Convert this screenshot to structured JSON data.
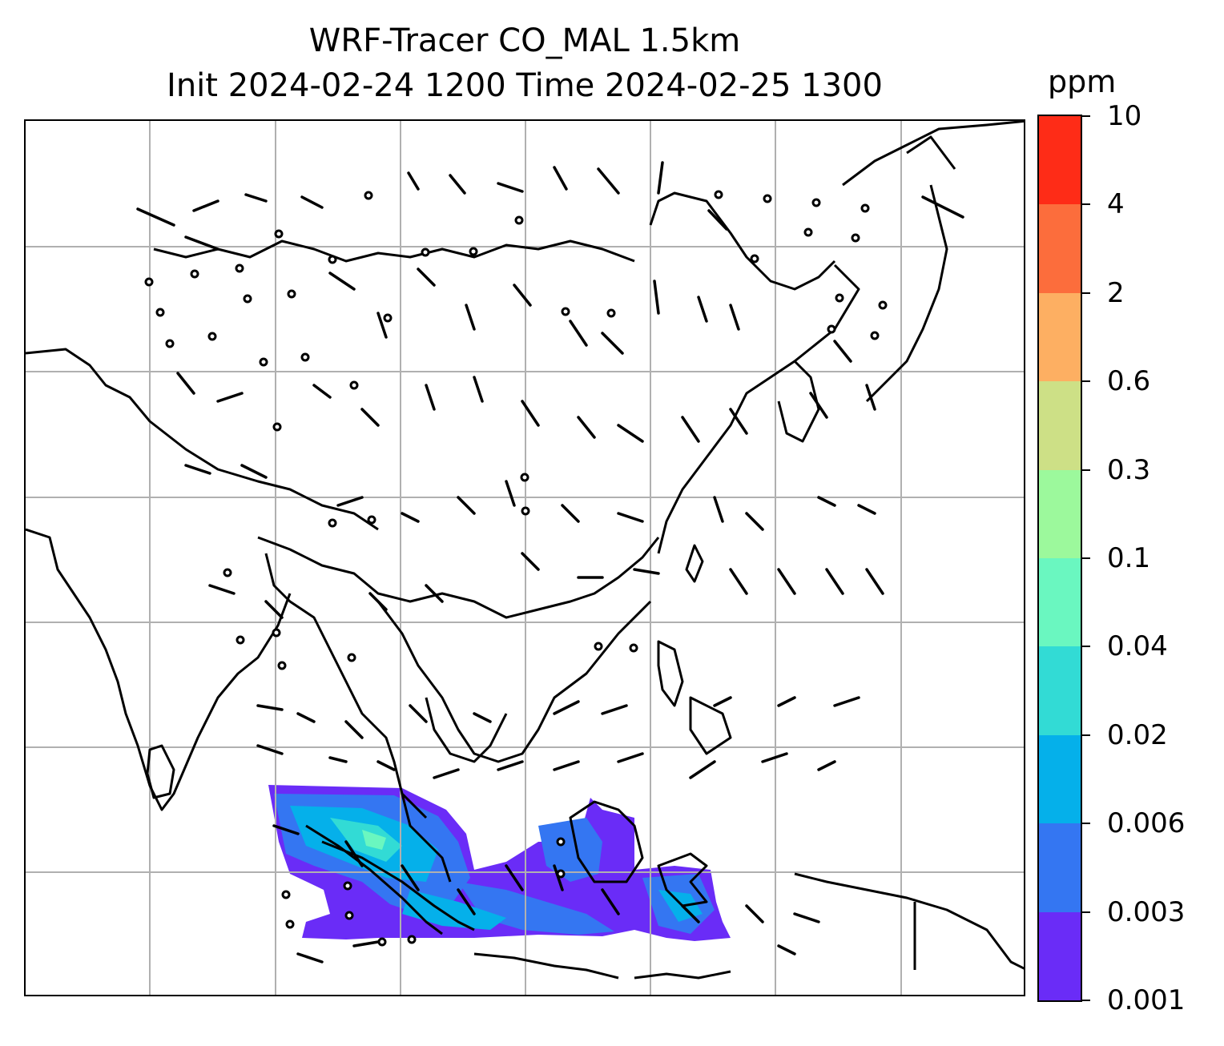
{
  "title_line1": "WRF-Tracer CO_MAL 1.5km",
  "title_line2": "Init 2024-02-24 1200 Time 2024-02-25 1300",
  "colorbar": {
    "unit": "ppm",
    "levels": [
      "0.001",
      "0.003",
      "0.006",
      "0.02",
      "0.04",
      "0.1",
      "0.3",
      "0.6",
      "2",
      "4",
      "10"
    ],
    "colors": [
      "#6a2cf7",
      "#3476f2",
      "#05b0ea",
      "#32dbd5",
      "#6af7c0",
      "#9cf99c",
      "#cde086",
      "#fdaf62",
      "#fc6d3c",
      "#fe2c17"
    ]
  },
  "map": {
    "gridlines": true,
    "plume_colors": [
      "#6a2cf7",
      "#3476f2",
      "#05b0ea",
      "#32dbd5",
      "#6af7c0"
    ]
  }
}
